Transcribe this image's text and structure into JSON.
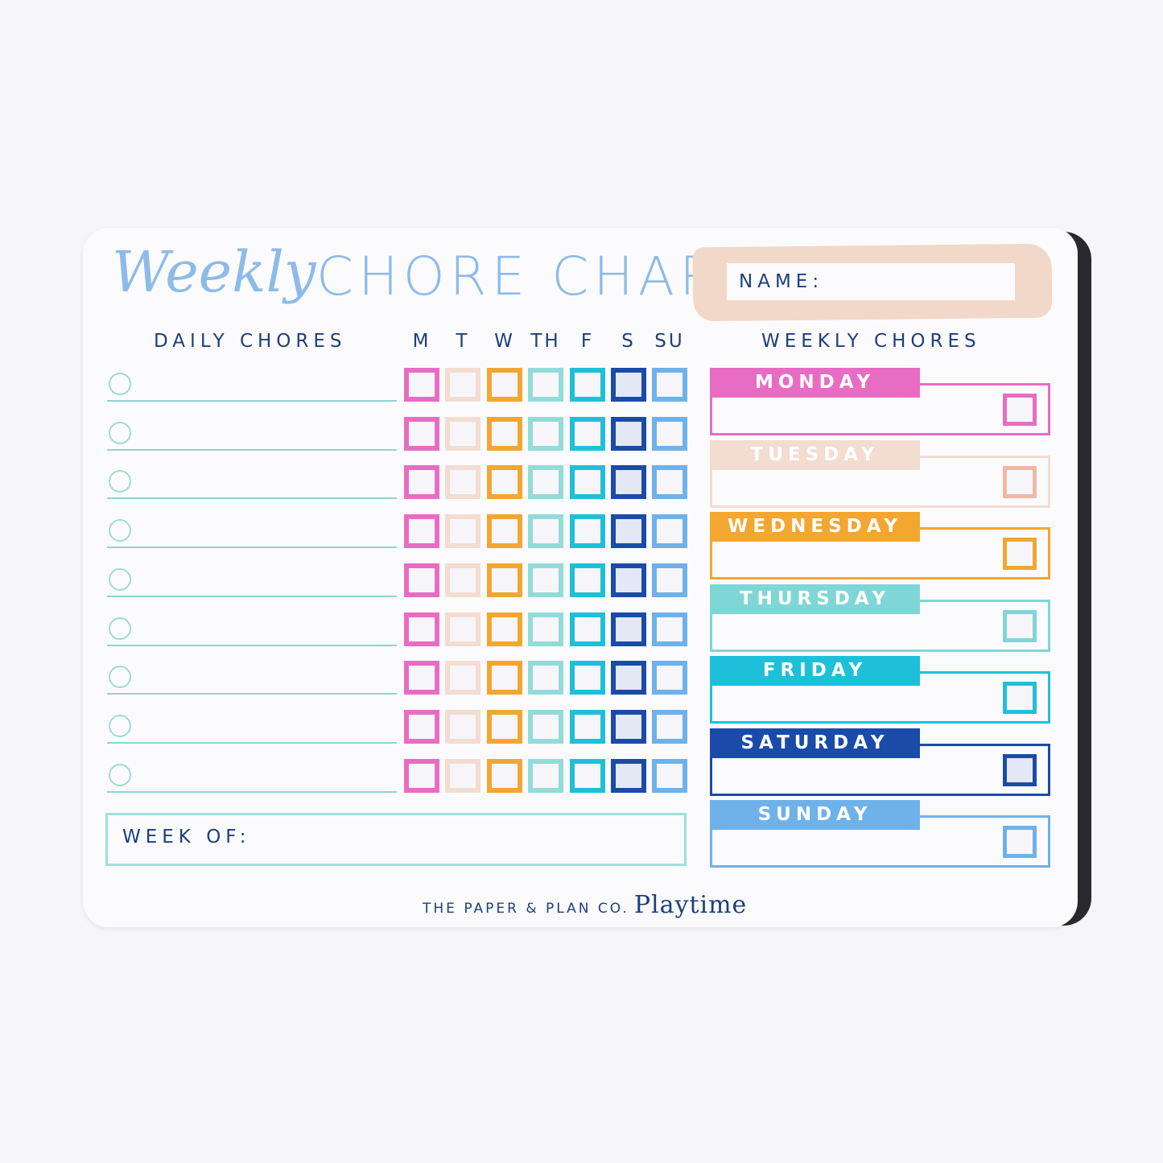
{
  "title": {
    "script": "Weekly",
    "caps": "CHORE CHART"
  },
  "name_label": "NAME:",
  "daily": {
    "heading": "DAILY CHORES",
    "rows": 9,
    "days": [
      "M",
      "T",
      "W",
      "TH",
      "F",
      "S",
      "SU"
    ],
    "day_colors": [
      "#e86cc4",
      "#f3dcd0",
      "#f3a630",
      "#93dbd9",
      "#1ec0d9",
      "#1a4ba8",
      "#6fb1e9"
    ]
  },
  "week_of_label": "WEEK OF:",
  "weekly": {
    "heading": "WEEKLY CHORES",
    "days": [
      {
        "label": "MONDAY",
        "color": "#e86cc4"
      },
      {
        "label": "TUESDAY",
        "color": "#f3dcd0"
      },
      {
        "label": "WEDNESDAY",
        "color": "#f3a630"
      },
      {
        "label": "THURSDAY",
        "color": "#7fd6d6"
      },
      {
        "label": "FRIDAY",
        "color": "#1ec0d9"
      },
      {
        "label": "SATURDAY",
        "color": "#1a4ba8"
      },
      {
        "label": "SUNDAY",
        "color": "#6fb1e9"
      }
    ]
  },
  "footer": {
    "company": "THE PAPER & PLAN CO.",
    "brand": "Playtime"
  }
}
